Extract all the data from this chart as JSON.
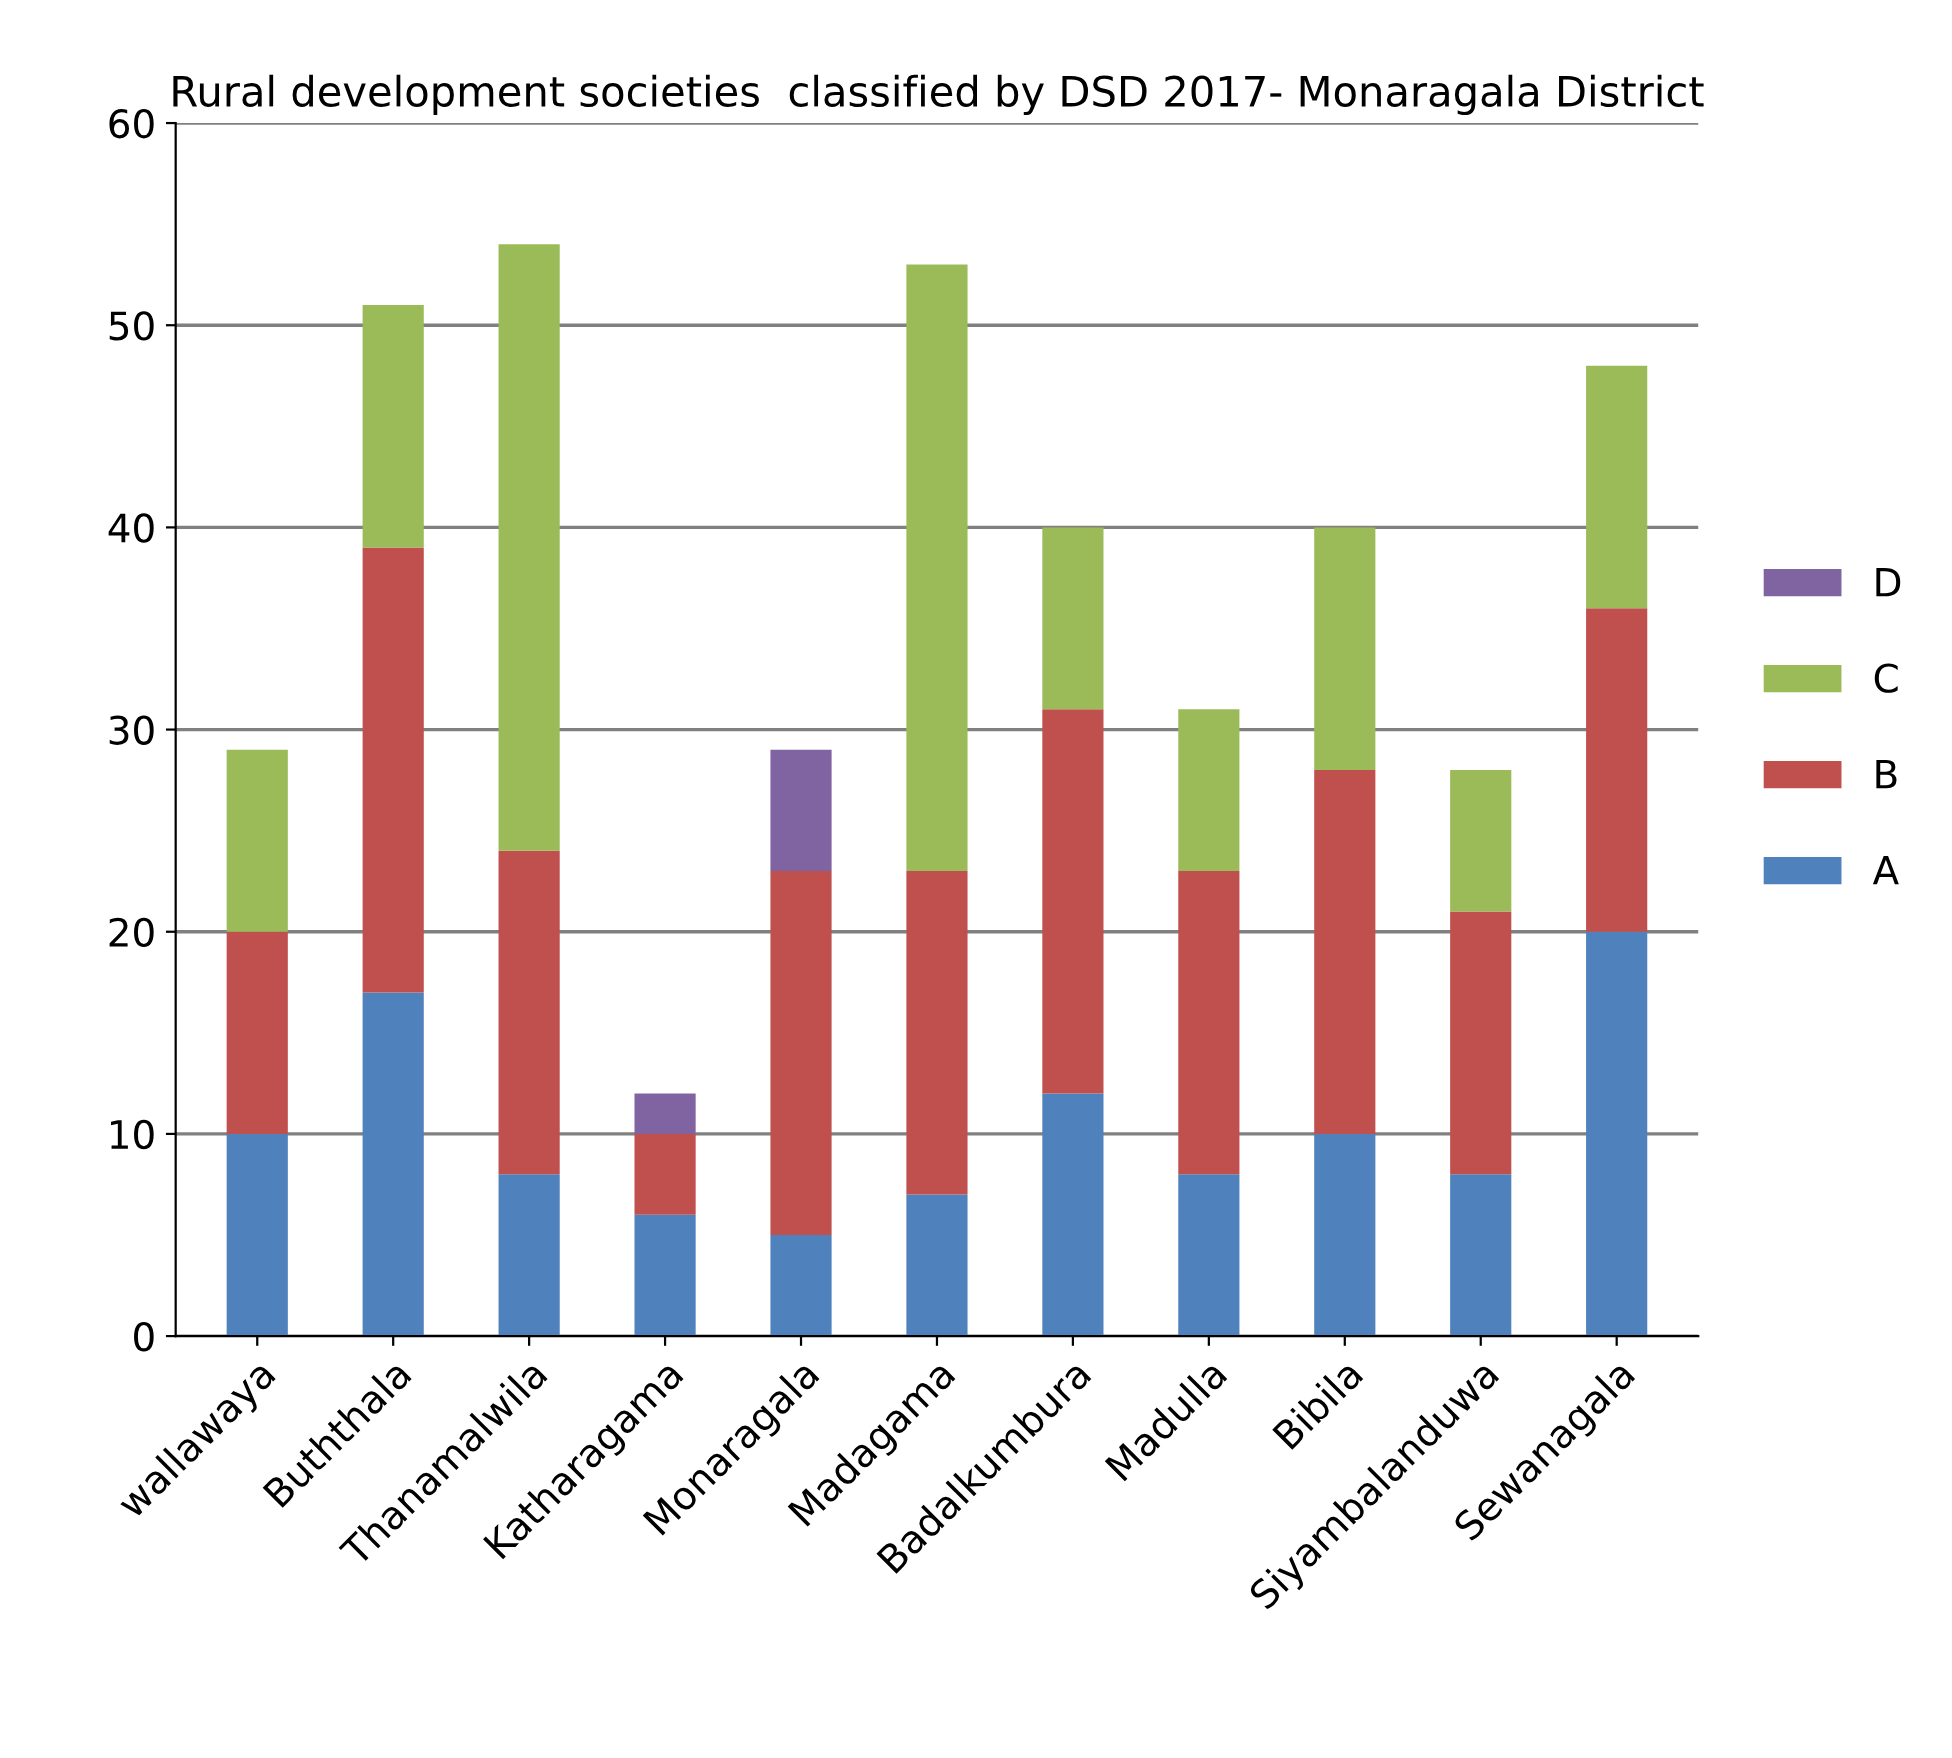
{
  "chart_data": {
    "type": "bar",
    "title": "Rural development societies  classified by DSD 2017- Monaragala District",
    "categories": [
      "wallawaya",
      "Buththala",
      "Thanamalwila",
      "Katharagama",
      "Monaragala",
      "Madagama",
      "Badalkumbura",
      "Madulla",
      "Bibila",
      "Siyambalanduwa",
      "Sewanagala"
    ],
    "stacked": true,
    "series": [
      {
        "name": "A",
        "color": "#4f81bd",
        "values": [
          10,
          17,
          8,
          6,
          5,
          7,
          12,
          8,
          10,
          8,
          20
        ]
      },
      {
        "name": "B",
        "color": "#c0504d",
        "values": [
          10,
          22,
          16,
          4,
          18,
          16,
          19,
          15,
          18,
          13,
          16
        ]
      },
      {
        "name": "C",
        "color": "#9bbb59",
        "values": [
          9,
          12,
          30,
          0,
          0,
          30,
          9,
          8,
          12,
          7,
          12
        ]
      },
      {
        "name": "D",
        "color": "#8064a2",
        "values": [
          0,
          0,
          0,
          2,
          6,
          0,
          0,
          0,
          0,
          0,
          0
        ]
      }
    ],
    "ylim": [
      0,
      60
    ],
    "yticks": [
      0,
      10,
      20,
      30,
      40,
      50,
      60
    ],
    "grid": "y",
    "legend": "right"
  }
}
